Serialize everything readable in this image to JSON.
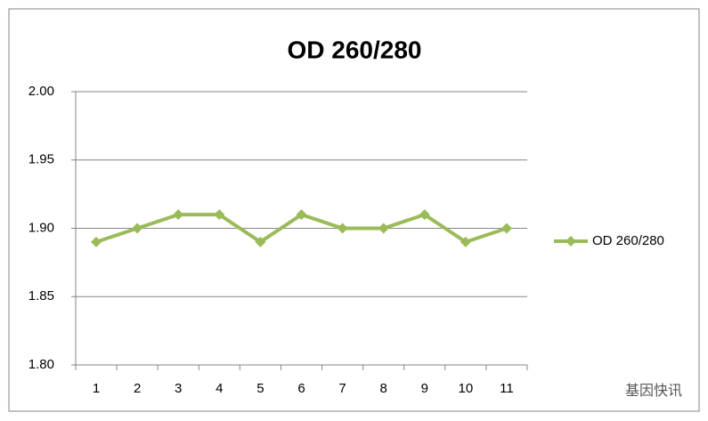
{
  "chart_data": {
    "type": "line",
    "title": "OD 260/280",
    "categories": [
      "1",
      "2",
      "3",
      "4",
      "5",
      "6",
      "7",
      "8",
      "9",
      "10",
      "11"
    ],
    "series": [
      {
        "name": "OD 260/280",
        "color": "#9bbb59",
        "values": [
          1.89,
          1.9,
          1.91,
          1.91,
          1.89,
          1.91,
          1.9,
          1.9,
          1.91,
          1.89,
          1.9
        ]
      }
    ],
    "ylim": [
      1.8,
      2.0
    ],
    "yticks": [
      {
        "value": 1.8,
        "label": "1.80"
      },
      1.85,
      {
        "value": 1.9,
        "label": "1.90"
      },
      1.95,
      {
        "value": 2.0,
        "label": "2.00"
      }
    ],
    "grid": true,
    "legend": "right"
  },
  "watermark": "基因快讯"
}
